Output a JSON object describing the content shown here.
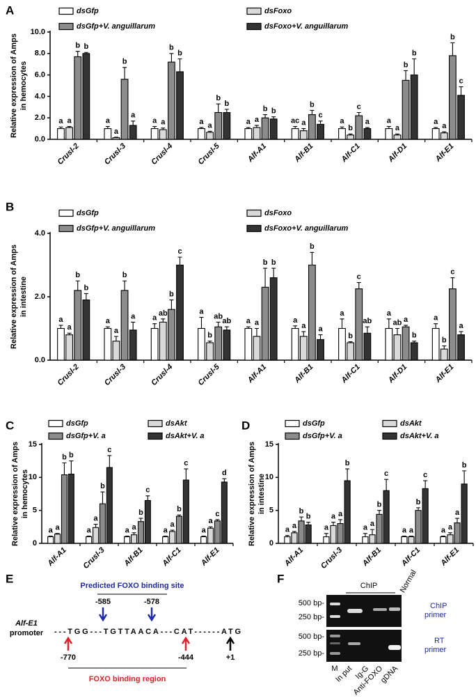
{
  "chart_data": [
    {
      "panel": "A",
      "type": "bar",
      "ylabel": [
        "Relative expression of Amps",
        "in hemocytes"
      ],
      "ylim": [
        0,
        10
      ],
      "yticks": [
        {
          "value": 0,
          "label": "0.0"
        },
        {
          "value": 2,
          "label": "2.0"
        },
        {
          "value": 4,
          "label": "4.0"
        },
        {
          "value": 6,
          "label": "6.0"
        },
        {
          "value": 8,
          "label": "8.0"
        },
        {
          "value": 10,
          "label": "10.0"
        }
      ],
      "categories": [
        "Crusl-2",
        "Crusl-3",
        "Crusl-4",
        "Crusl-5",
        "Alf-A1",
        "Alf-B1",
        "Alf-C1",
        "Alf-D1",
        "Alf-E1"
      ],
      "series": [
        {
          "name": "dsGfp",
          "color": "#ffffff",
          "values": [
            1.0,
            1.0,
            1.0,
            1.0,
            1.0,
            1.0,
            1.0,
            1.0,
            1.0
          ],
          "errors": [
            0.15,
            0.2,
            0.2,
            0.1,
            0.1,
            0.2,
            0.15,
            0.2,
            0.1
          ],
          "letters": [
            "a",
            "a",
            "a",
            "a",
            "a",
            "ac",
            "a",
            "a",
            "a"
          ]
        },
        {
          "name": "dsFoxo",
          "color": "#d9d9d9",
          "values": [
            1.1,
            0.15,
            0.9,
            0.65,
            1.1,
            0.8,
            0.4,
            0.4,
            0.6
          ],
          "errors": [
            0.1,
            0.05,
            0.15,
            0.1,
            0.2,
            0.2,
            0.1,
            0.1,
            0.1
          ],
          "letters": [
            "a",
            "a",
            "a",
            "a",
            "a",
            "a",
            "b",
            "a",
            "a"
          ]
        },
        {
          "name": "dsGfp+V. anguillarum",
          "color": "#8c8c8c",
          "values": [
            7.7,
            5.6,
            7.2,
            2.5,
            2.0,
            2.3,
            2.2,
            5.5,
            7.8
          ],
          "errors": [
            0.5,
            1.1,
            0.8,
            0.8,
            0.3,
            0.4,
            0.3,
            0.9,
            1.2
          ],
          "letters": [
            "b",
            "b",
            "b",
            "b",
            "b",
            "b",
            "c",
            "b",
            "b"
          ]
        },
        {
          "name": "dsFoxo+V. anguillarum",
          "color": "#333333",
          "values": [
            8.0,
            1.3,
            6.3,
            2.5,
            1.9,
            1.4,
            1.0,
            6.0,
            4.1
          ],
          "errors": [
            0.1,
            0.4,
            1.2,
            0.3,
            0.2,
            0.3,
            0.1,
            1.5,
            0.8
          ],
          "letters": [
            "b",
            "a",
            "b",
            "b",
            "b",
            "c",
            "a",
            "b",
            "c"
          ]
        }
      ]
    },
    {
      "panel": "B",
      "type": "bar",
      "ylabel": [
        "Relative expression of Amps",
        "in intestine"
      ],
      "ylim": [
        0,
        4
      ],
      "yticks": [
        {
          "value": 0,
          "label": "0.0"
        },
        {
          "value": 2,
          "label": "2.0"
        },
        {
          "value": 4,
          "label": "4.0"
        }
      ],
      "categories": [
        "Crusl-2",
        "Crusl-3",
        "Crusl-4",
        "Crusl-5",
        "Alf-A1",
        "Alf-B1",
        "Alf-C1",
        "Alf-D1",
        "Alf-E1"
      ],
      "series": [
        {
          "name": "dsGfp",
          "color": "#ffffff",
          "values": [
            1.0,
            1.0,
            1.0,
            1.0,
            1.0,
            1.0,
            1.0,
            1.0,
            1.0
          ],
          "errors": [
            0.1,
            0.05,
            0.15,
            0.35,
            0.05,
            0.08,
            0.3,
            0.3,
            0.15
          ],
          "letters": [
            "a",
            "a",
            "a",
            "a",
            "a",
            "a",
            "a",
            "a",
            "a"
          ]
        },
        {
          "name": "dsFoxo",
          "color": "#d9d9d9",
          "values": [
            0.8,
            0.6,
            1.2,
            0.55,
            0.75,
            0.75,
            0.55,
            0.8,
            0.35
          ],
          "errors": [
            0.05,
            0.15,
            0.1,
            0.05,
            0.25,
            0.15,
            0.03,
            0.2,
            0.1
          ],
          "letters": [
            "a",
            "a",
            "ab",
            "b",
            "a",
            "a",
            "b",
            "ab",
            "b"
          ]
        },
        {
          "name": "dsGfp+V. anguillarum",
          "color": "#8c8c8c",
          "values": [
            2.2,
            2.2,
            1.6,
            1.05,
            2.3,
            3.0,
            2.25,
            1.05,
            2.25
          ],
          "errors": [
            0.3,
            0.3,
            0.3,
            0.15,
            0.6,
            0.4,
            0.2,
            0.05,
            0.35
          ],
          "letters": [
            "b",
            "b",
            "b",
            "ab",
            "b",
            "b",
            "c",
            "a",
            "c"
          ]
        },
        {
          "name": "dsFoxo+V. anguillarum",
          "color": "#333333",
          "values": [
            1.9,
            0.95,
            3.0,
            0.95,
            2.6,
            0.65,
            0.85,
            0.55,
            0.8
          ],
          "errors": [
            0.2,
            0.25,
            0.25,
            0.1,
            0.3,
            0.15,
            0.2,
            0.05,
            0.1
          ],
          "letters": [
            "b",
            "a",
            "c",
            "ab",
            "b",
            "a",
            "ab",
            "b",
            "a"
          ]
        }
      ]
    },
    {
      "panel": "C",
      "type": "bar",
      "ylabel": [
        "Relative expression of Amps",
        "in hemocytes"
      ],
      "ylim": [
        0,
        15
      ],
      "yticks": [
        0,
        5,
        10,
        15
      ],
      "categories": [
        "Alf-A1",
        "Crusl-3",
        "Alf-B1",
        "Alf-C1",
        "Alf-E1"
      ],
      "series": [
        {
          "name": "dsGfp",
          "color": "#ffffff",
          "values": [
            1.0,
            1.0,
            1.0,
            1.0,
            1.0
          ],
          "errors": [
            0.1,
            0.1,
            0.1,
            0.1,
            0.1
          ],
          "letters": [
            "a",
            "a",
            "a",
            "a",
            "a"
          ]
        },
        {
          "name": "dsAkt",
          "color": "#d9d9d9",
          "values": [
            1.4,
            2.4,
            1.3,
            1.8,
            2.3
          ],
          "errors": [
            0.1,
            0.5,
            0.3,
            0.2,
            0.2
          ],
          "letters": [
            "a",
            "a",
            "a",
            "a",
            "a"
          ]
        },
        {
          "name": "dsGfp+V. a",
          "color": "#8c8c8c",
          "values": [
            10.4,
            6.0,
            3.3,
            4.1,
            3.4
          ],
          "errors": [
            1.8,
            1.8,
            0.5,
            0.2,
            0.2
          ],
          "letters": [
            "b",
            "b",
            "b",
            "b",
            "c"
          ]
        },
        {
          "name": "dsAkt+V. a",
          "color": "#333333",
          "values": [
            10.5,
            11.5,
            6.5,
            9.6,
            9.3
          ],
          "errors": [
            2.0,
            1.8,
            0.7,
            1.7,
            0.5
          ],
          "letters": [
            "b",
            "c",
            "c",
            "c",
            "d"
          ]
        }
      ]
    },
    {
      "panel": "D",
      "type": "bar",
      "ylabel": [
        "Relative expression of Amps",
        "in intestine"
      ],
      "ylim": [
        0,
        15
      ],
      "yticks": [
        0,
        5,
        10,
        15
      ],
      "categories": [
        "Alf-A1",
        "Crusl-3",
        "Alf-B1",
        "Alf-C1",
        "Alf-E1"
      ],
      "series": [
        {
          "name": "dsGfp",
          "color": "#ffffff",
          "values": [
            1.0,
            1.0,
            1.0,
            1.0,
            1.0
          ],
          "errors": [
            0.2,
            0.5,
            0.5,
            0.1,
            0.1
          ],
          "letters": [
            "a",
            "a",
            "a",
            "a",
            "a"
          ]
        },
        {
          "name": "dsAkt",
          "color": "#d9d9d9",
          "values": [
            1.6,
            2.7,
            1.3,
            1.0,
            1.3
          ],
          "errors": [
            0.2,
            0.5,
            0.8,
            0.1,
            0.3
          ],
          "letters": [
            "a",
            "a",
            "a",
            "a",
            "a"
          ]
        },
        {
          "name": "dsGfp+V. a",
          "color": "#8c8c8c",
          "values": [
            3.4,
            3.0,
            4.4,
            5.0,
            3.1
          ],
          "errors": [
            0.6,
            0.6,
            0.6,
            0.4,
            0.7
          ],
          "letters": [
            "b",
            "a",
            "b",
            "b",
            "a"
          ]
        },
        {
          "name": "dsAkt+V. a",
          "color": "#333333",
          "values": [
            2.8,
            9.5,
            8.0,
            8.3,
            9.0
          ],
          "errors": [
            0.4,
            1.8,
            1.7,
            1.2,
            2.0
          ],
          "letters": [
            "b",
            "b",
            "c",
            "c",
            "b"
          ]
        }
      ]
    }
  ],
  "diagram": {
    "panel": "E",
    "site_title": "Predicted FOXO binding site",
    "gene": "Alf-E1",
    "gene_suffix": "promoter",
    "sequence": "---TGG---TGTTAACA---CAT------ATG",
    "site_positions": [
      "-585",
      "-578"
    ],
    "region_positions": [
      "-770",
      "-444"
    ],
    "start": "+1",
    "region_title": "FOXO binding region"
  },
  "gel": {
    "panel": "F",
    "chip": "ChIP",
    "normal": "Normal",
    "markers": [
      "500 bp-",
      "250 bp-",
      "500 bp-",
      "250 bp-"
    ],
    "lanes": [
      "M",
      "In put",
      "Ig-G",
      "Anti-FOXO",
      "gDNA"
    ],
    "primers": [
      [
        "ChIP",
        "primer"
      ],
      [
        "RT",
        "primer"
      ]
    ]
  }
}
